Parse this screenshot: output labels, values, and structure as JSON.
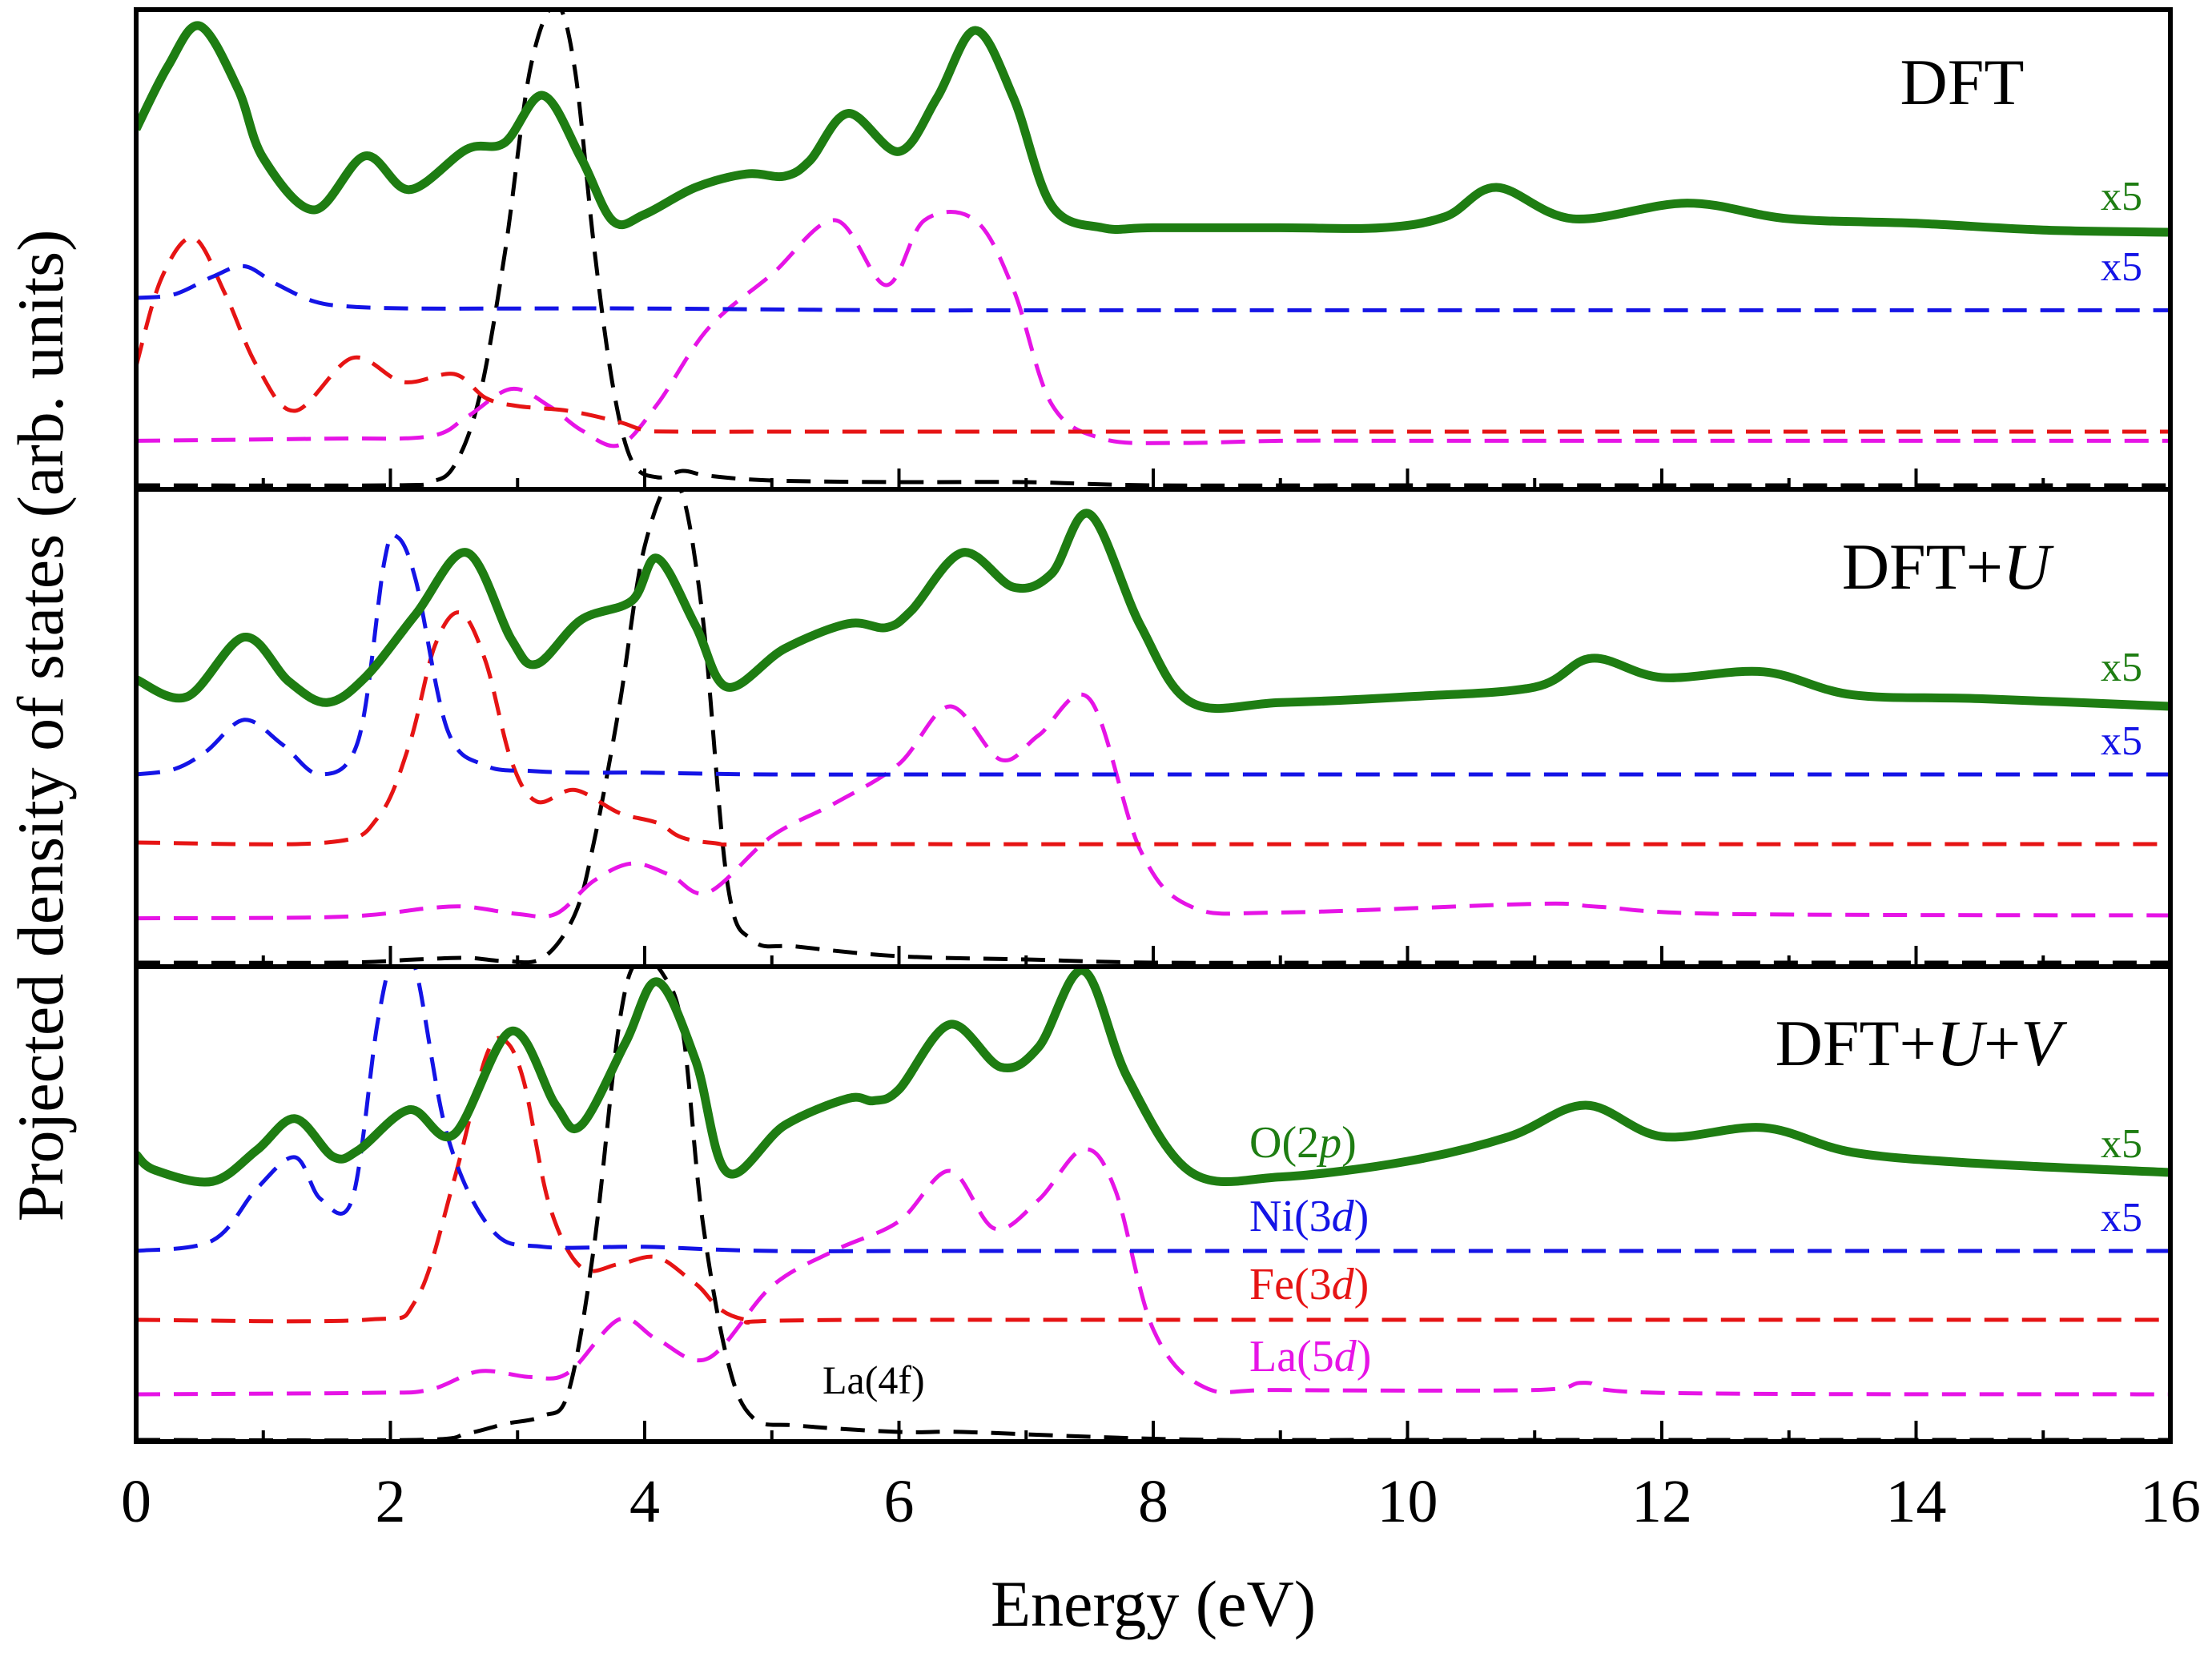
{
  "chart_data": {
    "type": "line",
    "xlabel": "Energy (eV)",
    "ylabel": "Projected density of states (arb. units)",
    "xlim": [
      0,
      16
    ],
    "xticks": [
      "0",
      "2",
      "4",
      "6",
      "8",
      "10",
      "12",
      "14",
      "16"
    ],
    "grid": false,
    "colors": {
      "O(2p)": "#1e7d12",
      "Ni(3d)": "#1414e6",
      "Fe(3d)": "#e61414",
      "La(5d)": "#e614e6",
      "La(4f)": "#000000"
    },
    "legend": {
      "placement": "bottom panel, right of center",
      "entries": [
        {
          "prefix": "O(2",
          "italic": "p",
          "suffix": ")",
          "color": "#1e7d12"
        },
        {
          "prefix": "Ni(3",
          "italic": "d",
          "suffix": ")",
          "color": "#1414e6"
        },
        {
          "prefix": "Fe(3",
          "italic": "d",
          "suffix": ")",
          "color": "#e61414"
        },
        {
          "prefix": "La(5",
          "italic": "d",
          "suffix": ")",
          "color": "#e614e6"
        }
      ],
      "la4f_label": "La(4f)"
    },
    "multiplier_label": "x5",
    "panels": [
      {
        "label_plain": "DFT",
        "label_italic_1": "",
        "label_mid": "",
        "label_italic_2": "",
        "multipliers": [
          "x5",
          "x5"
        ],
        "series": [
          {
            "name": "O(2p)",
            "style": "solid",
            "color": "#1e7d12",
            "x": [
              0,
              0.25,
              0.5,
              0.8,
              1.0,
              1.4,
              1.8,
              2.15,
              2.6,
              2.9,
              3.2,
              3.5,
              3.75,
              4.0,
              4.4,
              4.8,
              5.1,
              5.3,
              5.6,
              6.0,
              6.3,
              6.6,
              6.9,
              7.2,
              7.6,
              8.0,
              9.0,
              9.8,
              10.3,
              10.7,
              11.3,
              12.2,
              13.0,
              14.0,
              15.0,
              16.0
            ],
            "y": [
              0.46,
              0.74,
              0.92,
              0.64,
              0.33,
              0.1,
              0.34,
              0.19,
              0.37,
              0.4,
              0.61,
              0.33,
              0.05,
              0.08,
              0.2,
              0.26,
              0.25,
              0.32,
              0.53,
              0.36,
              0.6,
              0.9,
              0.6,
              0.12,
              0.02,
              0.02,
              0.02,
              0.02,
              0.07,
              0.2,
              0.06,
              0.13,
              0.06,
              0.04,
              0.01,
              0.0
            ]
          },
          {
            "name": "Ni(3d)",
            "style": "dashed",
            "color": "#1414e6",
            "x": [
              0,
              0.3,
              0.6,
              0.85,
              1.1,
              1.4,
              1.7,
              2.2,
              3.0,
              4.0,
              6.0,
              8.0,
              16.0
            ],
            "y": [
              0.0,
              0.02,
              0.12,
              0.18,
              0.08,
              -0.02,
              -0.05,
              -0.06,
              -0.06,
              -0.06,
              -0.07,
              -0.07,
              -0.07
            ]
          },
          {
            "name": "Fe(3d)",
            "style": "dashed",
            "color": "#e61414",
            "x": [
              0,
              0.2,
              0.45,
              0.7,
              0.95,
              1.25,
              1.7,
              2.1,
              2.5,
              2.75,
              3.0,
              3.4,
              3.8,
              4.0,
              4.3,
              6.0,
              16.0
            ],
            "y": [
              0.0,
              0.55,
              0.8,
              0.45,
              0.0,
              -0.28,
              0.05,
              -0.1,
              -0.05,
              -0.2,
              -0.25,
              -0.28,
              -0.35,
              -0.4,
              -0.41,
              -0.41,
              -0.41
            ]
          },
          {
            "name": "La(5d)",
            "style": "dashed",
            "color": "#e614e6",
            "x": [
              0,
              1.5,
              2.3,
              2.6,
              2.95,
              3.25,
              3.5,
              3.8,
              4.1,
              4.5,
              5.0,
              5.5,
              5.9,
              6.2,
              6.6,
              6.9,
              7.2,
              7.6,
              8.2,
              9.0,
              10.0,
              12.0,
              14.0,
              16.0
            ],
            "y": [
              -0.02,
              -0.01,
              0.0,
              0.09,
              0.22,
              0.14,
              0.03,
              -0.04,
              0.15,
              0.5,
              0.75,
              1.0,
              0.7,
              1.0,
              1.0,
              0.68,
              0.15,
              -0.01,
              -0.03,
              -0.02,
              -0.02,
              -0.02,
              -0.02,
              -0.02
            ]
          },
          {
            "name": "La(4f)",
            "style": "dashed",
            "color": "#000000",
            "x": [
              0,
              2.0,
              2.3,
              2.5,
              2.7,
              2.9,
              3.1,
              3.3,
              3.45,
              3.6,
              3.75,
              3.9,
              4.1,
              4.3,
              4.5,
              5.0,
              6.0,
              7.0,
              8.0,
              10.0,
              16.0
            ],
            "y": [
              0.0,
              0.0,
              0.02,
              0.12,
              0.55,
              1.45,
              2.6,
              3.0,
              2.6,
              1.5,
              0.62,
              0.15,
              0.05,
              0.09,
              0.06,
              0.03,
              0.02,
              0.02,
              0.0,
              0.0,
              0.0
            ]
          }
        ]
      },
      {
        "label_plain": "DFT+",
        "label_italic_1": "U",
        "label_mid": "",
        "label_italic_2": "",
        "multipliers": [
          "x5",
          "x5"
        ],
        "series": [
          {
            "name": "O(2p)",
            "style": "solid",
            "color": "#1e7d12",
            "x": [
              0,
              0.4,
              0.85,
              1.2,
              1.5,
              1.8,
              2.2,
              2.6,
              2.95,
              3.15,
              3.5,
              3.9,
              4.1,
              4.4,
              4.65,
              5.1,
              5.6,
              5.9,
              6.1,
              6.5,
              6.9,
              7.2,
              7.5,
              7.9,
              8.3,
              9.0,
              10.0,
              11.0,
              11.45,
              12.0,
              12.8,
              13.5,
              14.5,
              16.0
            ],
            "y": [
              0.14,
              0.05,
              0.36,
              0.13,
              0.02,
              0.15,
              0.48,
              0.8,
              0.35,
              0.22,
              0.45,
              0.55,
              0.77,
              0.42,
              0.1,
              0.3,
              0.43,
              0.41,
              0.5,
              0.8,
              0.62,
              0.69,
              1.0,
              0.42,
              0.02,
              0.02,
              0.05,
              0.1,
              0.25,
              0.15,
              0.18,
              0.06,
              0.04,
              0.0
            ]
          },
          {
            "name": "Ni(3d)",
            "style": "dashed",
            "color": "#1414e6",
            "x": [
              0,
              0.3,
              0.55,
              0.85,
              1.15,
              1.45,
              1.75,
              1.95,
              2.05,
              2.2,
              2.45,
              2.75,
              3.1,
              3.5,
              4.0,
              5.0,
              7.0,
              16.0
            ],
            "y": [
              0.0,
              0.03,
              0.13,
              0.31,
              0.17,
              0.0,
              0.2,
              1.2,
              1.35,
              1.1,
              0.25,
              0.05,
              0.02,
              0.01,
              0.01,
              0.0,
              0.0,
              0.0
            ]
          },
          {
            "name": "Fe(3d)",
            "style": "dashed",
            "color": "#e61414",
            "x": [
              0,
              1.5,
              1.9,
              2.15,
              2.35,
              2.55,
              2.75,
              2.95,
              3.15,
              3.45,
              3.8,
              4.1,
              4.5,
              6.0,
              16.0
            ],
            "y": [
              0.0,
              0.0,
              0.15,
              0.6,
              1.2,
              1.4,
              1.1,
              0.5,
              0.25,
              0.32,
              0.18,
              0.12,
              0.0,
              -0.01,
              -0.01
            ]
          },
          {
            "name": "La(5d)",
            "style": "dashed",
            "color": "#e614e6",
            "x": [
              0,
              1.6,
              2.3,
              2.6,
              3.0,
              3.3,
              3.6,
              3.9,
              4.2,
              4.5,
              5.0,
              5.5,
              6.0,
              6.4,
              6.8,
              7.1,
              7.5,
              7.9,
              8.3,
              9.0,
              11.0,
              11.5,
              12.5,
              16.0
            ],
            "y": [
              -0.02,
              -0.01,
              0.05,
              0.06,
              0.01,
              0.01,
              0.24,
              0.36,
              0.28,
              0.16,
              0.55,
              0.78,
              1.05,
              1.45,
              1.08,
              1.25,
              1.5,
              0.45,
              0.06,
              0.02,
              0.08,
              0.06,
              0.01,
              0.0
            ]
          },
          {
            "name": "La(4f)",
            "style": "dashed",
            "color": "#000000",
            "x": [
              0,
              1.6,
              2.2,
              2.6,
              2.9,
              3.2,
              3.45,
              3.6,
              3.8,
              4.0,
              4.25,
              4.45,
              4.65,
              4.85,
              5.2,
              6.0,
              7.0,
              8.0,
              10.0,
              16.0
            ],
            "y": [
              0.0,
              0.0,
              0.02,
              0.03,
              0.01,
              0.03,
              0.3,
              0.75,
              1.6,
              2.6,
              3.0,
              2.2,
              0.5,
              0.14,
              0.1,
              0.04,
              0.02,
              0.0,
              0.0,
              0.0
            ]
          }
        ]
      },
      {
        "label_plain": "DFT+",
        "label_italic_1": "U",
        "label_mid": "+",
        "label_italic_2": "V",
        "multipliers": [
          "x5",
          "x5"
        ],
        "series": [
          {
            "name": "O(2p)",
            "style": "solid",
            "color": "#1e7d12",
            "x": [
              0,
              0.15,
              0.6,
              0.95,
              1.25,
              1.55,
              1.75,
              2.15,
              2.5,
              2.95,
              3.3,
              3.5,
              3.85,
              4.1,
              4.4,
              4.65,
              5.1,
              5.6,
              5.8,
              6.0,
              6.4,
              6.8,
              7.1,
              7.45,
              7.8,
              8.3,
              9.0,
              10.0,
              10.8,
              11.4,
              12.0,
              12.8,
              13.5,
              14.5,
              16.0
            ],
            "y": [
              0.13,
              0.06,
              0.01,
              0.15,
              0.29,
              0.12,
              0.15,
              0.33,
              0.22,
              0.68,
              0.35,
              0.26,
              0.63,
              0.9,
              0.55,
              0.05,
              0.26,
              0.38,
              0.37,
              0.42,
              0.71,
              0.52,
              0.61,
              0.95,
              0.47,
              0.05,
              0.03,
              0.1,
              0.21,
              0.35,
              0.21,
              0.25,
              0.14,
              0.09,
              0.05
            ]
          },
          {
            "name": "Ni(3d)",
            "style": "dashed",
            "color": "#1414e6",
            "x": [
              0,
              0.6,
              0.95,
              1.25,
              1.45,
              1.7,
              1.9,
              2.05,
              2.2,
              2.45,
              2.8,
              3.2,
              4.0,
              5.0,
              7.0,
              16.0
            ],
            "y": [
              0.0,
              0.05,
              0.3,
              0.45,
              0.25,
              0.25,
              1.1,
              1.46,
              1.35,
              0.55,
              0.1,
              0.02,
              0.02,
              0.0,
              0.0,
              0.0
            ]
          },
          {
            "name": "Fe(3d)",
            "style": "dashed",
            "color": "#e61414",
            "x": [
              0,
              1.8,
              2.2,
              2.5,
              2.75,
              2.9,
              3.05,
              3.25,
              3.5,
              3.8,
              4.1,
              4.4,
              4.8,
              6.0,
              16.0
            ],
            "y": [
              0.0,
              0.0,
              0.12,
              0.85,
              1.6,
              1.7,
              1.45,
              0.7,
              0.32,
              0.34,
              0.38,
              0.22,
              0.0,
              0.0,
              0.0
            ]
          },
          {
            "name": "La(5d)",
            "style": "dashed",
            "color": "#e614e6",
            "x": [
              0,
              1.8,
              2.3,
              2.7,
              3.1,
              3.4,
              3.8,
              4.1,
              4.5,
              5.0,
              5.5,
              6.0,
              6.4,
              6.75,
              7.1,
              7.45,
              7.7,
              8.0,
              8.4,
              9.0,
              11.0,
              11.4,
              12.0,
              16.0
            ],
            "y": [
              0.0,
              0.01,
              0.03,
              0.16,
              0.12,
              0.15,
              0.52,
              0.38,
              0.25,
              0.75,
              1.0,
              1.2,
              1.55,
              1.15,
              1.35,
              1.7,
              1.42,
              0.45,
              0.05,
              0.03,
              0.03,
              0.08,
              0.01,
              0.0
            ]
          },
          {
            "name": "La(4f)",
            "style": "dashed",
            "color": "#000000",
            "x": [
              0,
              2.2,
              2.6,
              2.9,
              3.2,
              3.4,
              3.6,
              3.8,
              3.95,
              4.15,
              4.3,
              4.45,
              4.65,
              4.85,
              5.2,
              6.0,
              6.5,
              7.5,
              8.5,
              10.0,
              16.0
            ],
            "y": [
              0.0,
              0.0,
              0.04,
              0.1,
              0.15,
              0.3,
              1.2,
              2.6,
              3.0,
              2.9,
              2.55,
              1.4,
              0.5,
              0.14,
              0.09,
              0.05,
              0.05,
              0.02,
              0.0,
              0.0,
              0.0
            ]
          }
        ]
      }
    ]
  }
}
